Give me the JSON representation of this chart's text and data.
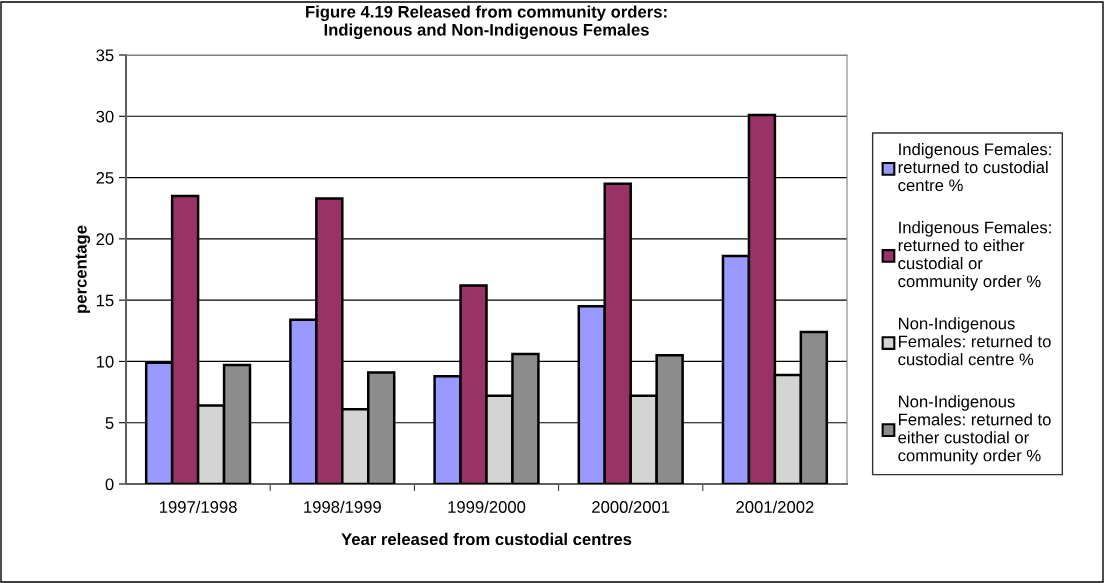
{
  "chart_data": {
    "type": "bar",
    "title": "Figure 4.19 Released from community orders:\nIndigenous and Non-Indigenous Females",
    "xlabel": "Year released from custodial centres",
    "ylabel": "percentage",
    "categories": [
      "1997/1998",
      "1998/1999",
      "1999/2000",
      "2000/2001",
      "2001/2002"
    ],
    "series": [
      {
        "name": "Indigenous Females: returned to custodial centre %",
        "color": "#9999ff",
        "values": [
          9.9,
          13.4,
          8.8,
          14.5,
          18.6
        ]
      },
      {
        "name": "Indigenous Females: returned to either custodial or community order %",
        "color": "#993366",
        "values": [
          23.5,
          23.3,
          16.2,
          24.5,
          30.1
        ]
      },
      {
        "name": "Non-Indigenous Females: returned to custodial centre %",
        "color": "#d4d4d4",
        "values": [
          6.4,
          6.1,
          7.2,
          7.2,
          8.9
        ]
      },
      {
        "name": "Non-Indigenous Females: returned to either custodial or community order %",
        "color": "#8c8c8c",
        "values": [
          9.7,
          9.1,
          10.6,
          10.5,
          12.4
        ]
      }
    ],
    "ylim": [
      0,
      35
    ],
    "yticks": [
      0,
      5,
      10,
      15,
      20,
      25,
      30,
      35
    ],
    "grid": "y",
    "legend": "right"
  }
}
